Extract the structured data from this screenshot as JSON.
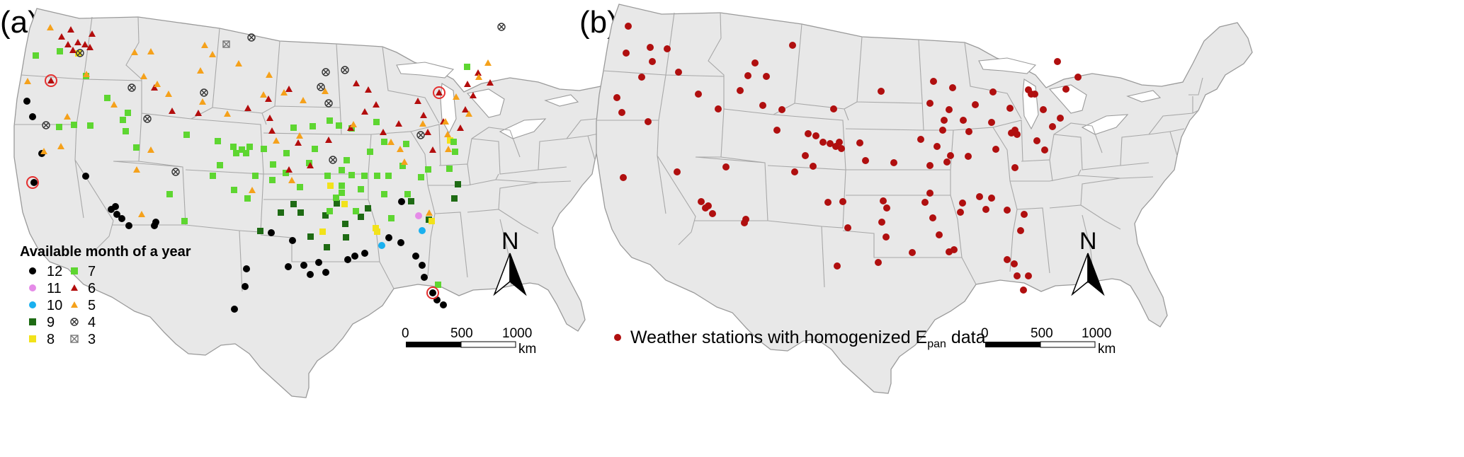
{
  "panel_a": {
    "label": "(a)",
    "legend": {
      "title": "Available month of a year",
      "items": [
        {
          "text": "12",
          "symbol": "circle",
          "color": "#000000"
        },
        {
          "text": "11",
          "symbol": "circle",
          "color": "#e58be8"
        },
        {
          "text": "10",
          "symbol": "circle",
          "color": "#1ab0ef"
        },
        {
          "text": "9",
          "symbol": "square",
          "color": "#1e6b14"
        },
        {
          "text": "8",
          "symbol": "square",
          "color": "#f2e21a"
        },
        {
          "text": "7",
          "symbol": "square",
          "color": "#5ed631"
        },
        {
          "text": "6",
          "symbol": "triangle",
          "color": "#b30d0d"
        },
        {
          "text": "5",
          "symbol": "triangle",
          "color": "#f5a11b"
        },
        {
          "text": "4",
          "symbol": "circle-x",
          "color": "#333333"
        },
        {
          "text": "3",
          "symbol": "square-x",
          "color": "#777777"
        }
      ]
    },
    "scale": {
      "ticks": [
        "0",
        "500",
        "1000"
      ],
      "unit": "km"
    },
    "north": "N"
  },
  "panel_b": {
    "label": "(b)",
    "legend": {
      "text": "Weather stations with homogenized E",
      "sub": "pan",
      "tail": " data",
      "color": "#b00f0f"
    },
    "scale": {
      "ticks": [
        "0",
        "500",
        "1000"
      ],
      "unit": "km"
    },
    "north": "N"
  },
  "colors": {
    "land": "#e8e8e8",
    "border": "#9a9a9a",
    "c12": "#000000",
    "c11": "#e58be8",
    "c10": "#1ab0ef",
    "c9": "#1e6b14",
    "c8": "#f2e21a",
    "c7": "#5ed631",
    "c6": "#b30d0d",
    "c5": "#f5a11b",
    "station_b": "#b00f0f",
    "highlight": "#e53030"
  }
}
